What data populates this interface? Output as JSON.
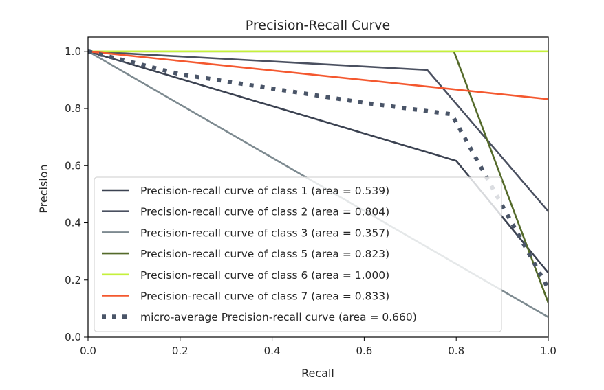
{
  "chart_data": {
    "type": "line",
    "title": "Precision-Recall Curve",
    "xlabel": "Recall",
    "ylabel": "Precision",
    "xlim": [
      0,
      1
    ],
    "ylim": [
      0,
      1.05
    ],
    "xticks": [
      "0.0",
      "0.2",
      "0.4",
      "0.6",
      "0.8",
      "1.0"
    ],
    "yticks": [
      "0.0",
      "0.2",
      "0.4",
      "0.6",
      "0.8",
      "1.0"
    ],
    "grid": false,
    "legend_position": "lower-left",
    "series": [
      {
        "name": "Precision-recall curve of class 1 (area = 0.539)",
        "color": "#3b4251",
        "style": "solid",
        "x": [
          0.0,
          0.8,
          1.0
        ],
        "y": [
          1.0,
          0.617,
          0.225
        ]
      },
      {
        "name": "Precision-recall curve of class 2 (area = 0.804)",
        "color": "#4a5060",
        "style": "solid",
        "x": [
          0.0,
          0.737,
          1.0
        ],
        "y": [
          1.0,
          0.935,
          0.44
        ]
      },
      {
        "name": "Precision-recall curve of class 3 (area = 0.357)",
        "color": "#7d8a90",
        "style": "solid",
        "x": [
          0.0,
          1.0
        ],
        "y": [
          1.0,
          0.07
        ]
      },
      {
        "name": "Precision-recall curve of class 5 (area = 0.823)",
        "color": "#546a2a",
        "style": "solid",
        "x": [
          0.0,
          0.795,
          1.0
        ],
        "y": [
          1.0,
          1.0,
          0.12
        ]
      },
      {
        "name": "Precision-recall curve of class 6 (area = 1.000)",
        "color": "#c5f03c",
        "style": "solid",
        "x": [
          0.0,
          1.0
        ],
        "y": [
          1.0,
          1.0
        ]
      },
      {
        "name": "Precision-recall curve of class 7 (area = 0.833)",
        "color": "#f4582f",
        "style": "solid",
        "x": [
          0.0,
          1.0
        ],
        "y": [
          1.0,
          0.833
        ]
      },
      {
        "name": "micro-average Precision-recall curve (area = 0.660)",
        "color": "#4a5568",
        "style": "dotted",
        "x": [
          0.0,
          0.2,
          0.4,
          0.6,
          0.79,
          1.0
        ],
        "y": [
          1.0,
          0.92,
          0.87,
          0.82,
          0.78,
          0.17
        ]
      }
    ]
  }
}
